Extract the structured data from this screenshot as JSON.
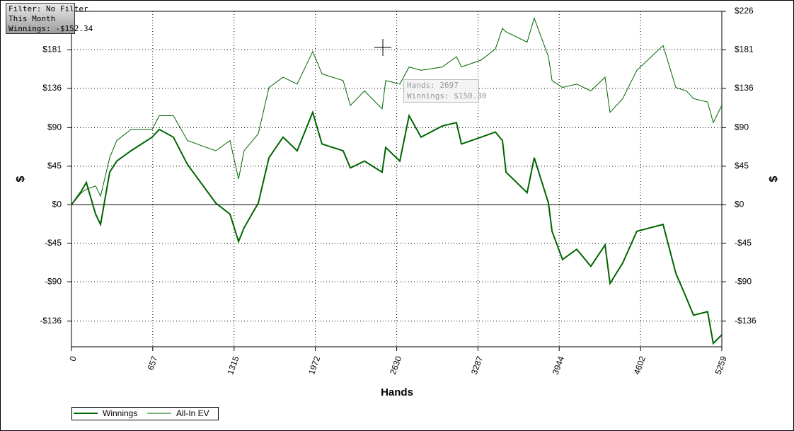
{
  "filter_box": {
    "lines": [
      "Filter: No Filter",
      "This Month",
      "Winnings: -$152.34"
    ]
  },
  "tooltip": {
    "lines": [
      "Hands: 2697",
      "Winnings: $150.30"
    ]
  },
  "chart_data": {
    "type": "line",
    "x_label": "Hands",
    "y_label": "$",
    "y2_label": "$",
    "xlim": [
      0,
      5259
    ],
    "xticks": [
      0,
      657,
      1315,
      1972,
      2630,
      3287,
      3944,
      4602,
      5259
    ],
    "ylim": [
      -166,
      226
    ],
    "yticks": [
      {
        "value": 226,
        "label": "$226"
      },
      {
        "value": 181,
        "label": "$181"
      },
      {
        "value": 136,
        "label": "$136"
      },
      {
        "value": 90,
        "label": "$90"
      },
      {
        "value": 45,
        "label": "$45"
      },
      {
        "value": 0,
        "label": "$0"
      },
      {
        "value": -45,
        "label": "-$45"
      },
      {
        "value": -90,
        "label": "-$90"
      },
      {
        "value": -136,
        "label": "-$136"
      }
    ],
    "grid": true,
    "x": [
      0,
      80,
      120,
      195,
      235,
      309,
      366,
      481,
      652,
      710,
      824,
      938,
      1167,
      1282,
      1351,
      1396,
      1511,
      1597,
      1711,
      1825,
      1951,
      2026,
      2197,
      2255,
      2369,
      2512,
      2541,
      2655,
      2730,
      2827,
      2999,
      3113,
      3153,
      3313,
      3428,
      3485,
      3514,
      3685,
      3742,
      3857,
      3886,
      3971,
      4086,
      4200,
      4315,
      4355,
      4458,
      4572,
      4784,
      4887,
      4973,
      5030,
      5144,
      5190,
      5259
    ],
    "series": [
      {
        "name": "Winnings",
        "color": "#006400",
        "values": [
          0,
          16,
          26,
          -11,
          -23,
          38,
          51,
          63,
          79,
          88,
          79,
          47,
          2,
          -11,
          -43,
          -27,
          2,
          55,
          79,
          63,
          108,
          71,
          63,
          43,
          51,
          38,
          67,
          51,
          104,
          79,
          92,
          96,
          71,
          79,
          85,
          75,
          38,
          14,
          55,
          2,
          -31,
          -64,
          -52,
          -72,
          -47,
          -92,
          -68,
          -31,
          -23,
          -80,
          -109,
          -129,
          -125,
          -162,
          -152
        ]
      },
      {
        "name": "All-In EV",
        "color": "#006400",
        "values": [
          0,
          14,
          18,
          22,
          10,
          55,
          75,
          88,
          88,
          104,
          104,
          75,
          63,
          75,
          30,
          63,
          83,
          137,
          149,
          141,
          179,
          153,
          145,
          116,
          133,
          112,
          145,
          141,
          161,
          157,
          161,
          173,
          161,
          169,
          182,
          206,
          202,
          190,
          218,
          173,
          145,
          137,
          141,
          133,
          149,
          108,
          124,
          157,
          186,
          137,
          133,
          124,
          120,
          96,
          116
        ]
      }
    ]
  }
}
